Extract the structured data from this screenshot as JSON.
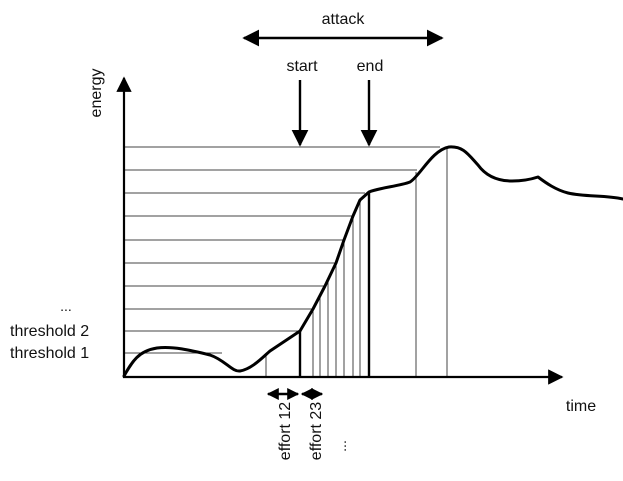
{
  "labels": {
    "attack": "attack",
    "start": "start",
    "end": "end",
    "energy": "energy",
    "time": "time",
    "ellipsis_thresholds": "...",
    "threshold_2": "threshold 2",
    "threshold_1": "threshold 1",
    "effort_12": "effort 12",
    "effort_23": "effort 23",
    "ellipsis_efforts": "..."
  },
  "colors": {
    "line": "#000000",
    "thin_line": "#444444",
    "background": "#ffffff"
  }
}
